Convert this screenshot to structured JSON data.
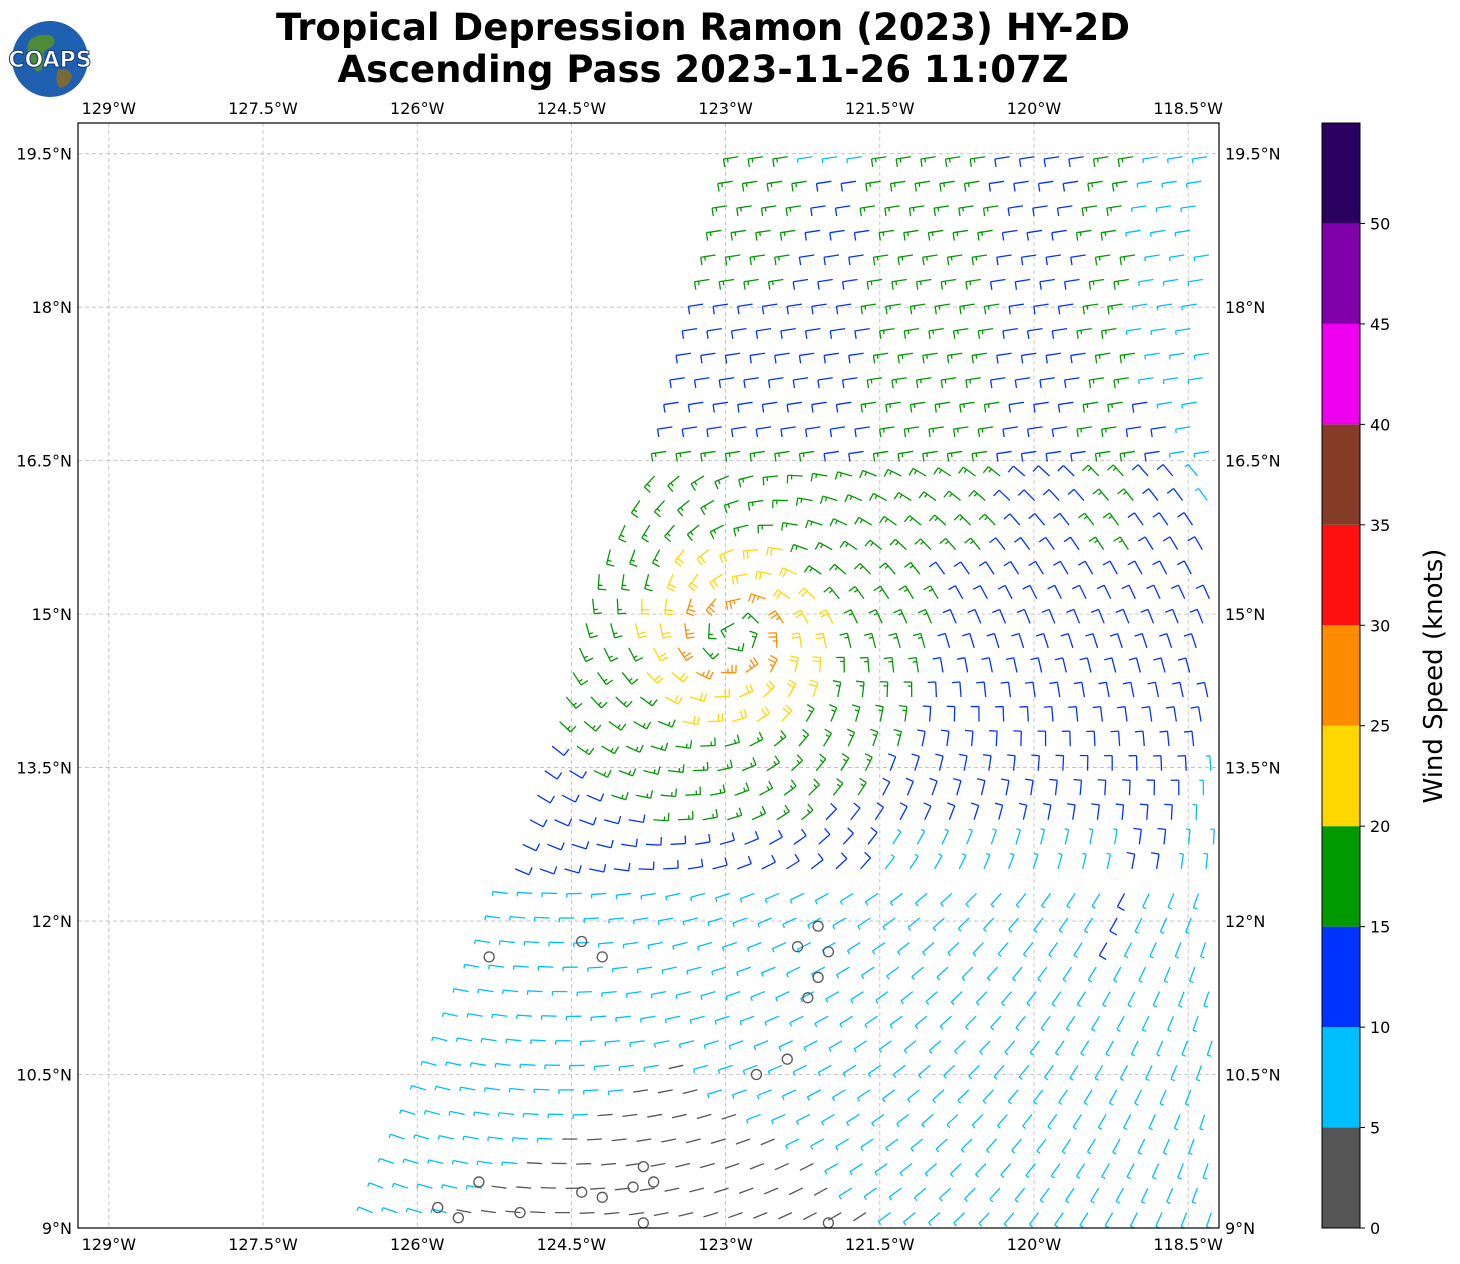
{
  "title": {
    "line1": "Tropical Depression Ramon (2023) HY-2D",
    "line2": "Ascending Pass 2023-11-26 11:07Z"
  },
  "logo": {
    "text": "COAPS",
    "icon": "globe-icon"
  },
  "map": {
    "lon_range": [
      -129.3,
      -118.2
    ],
    "lat_range": [
      9.0,
      19.8
    ],
    "grid": true,
    "lon_ticks": [
      -129,
      -127.5,
      -126,
      -124.5,
      -123,
      -121.5,
      -120,
      -118.5
    ],
    "lat_ticks": [
      9,
      10.5,
      12,
      13.5,
      15,
      16.5,
      18,
      19.5
    ],
    "lon_labels": [
      "129°W",
      "127.5°W",
      "126°W",
      "124.5°W",
      "123°W",
      "121.5°W",
      "120°W",
      "118.5°W"
    ],
    "lat_labels": [
      "9°N",
      "10.5°N",
      "12°N",
      "13.5°N",
      "15°N",
      "16.5°N",
      "18°N",
      "19.5°N"
    ]
  },
  "colorbar": {
    "title": "Wind Speed (knots)",
    "tick_labels": [
      "0",
      "5",
      "10",
      "15",
      "20",
      "25",
      "30",
      "35",
      "40",
      "45",
      "50"
    ],
    "bins": [
      {
        "min": 0,
        "max": 5,
        "color": "#555555"
      },
      {
        "min": 5,
        "max": 10,
        "color": "#00bfff"
      },
      {
        "min": 10,
        "max": 15,
        "color": "#0033ff"
      },
      {
        "min": 15,
        "max": 20,
        "color": "#009900"
      },
      {
        "min": 20,
        "max": 25,
        "color": "#ffd700"
      },
      {
        "min": 25,
        "max": 30,
        "color": "#ff8c00"
      },
      {
        "min": 30,
        "max": 35,
        "color": "#ff1010"
      },
      {
        "min": 35,
        "max": 40,
        "color": "#843c28"
      },
      {
        "min": 40,
        "max": 45,
        "color": "#ee00ee"
      },
      {
        "min": 45,
        "max": 50,
        "color": "#8000aa"
      },
      {
        "min": 50,
        "max": 55,
        "color": "#2a0060"
      }
    ]
  },
  "chart_data": {
    "type": "scatter",
    "description_type": "wind-barbs",
    "units": "knots",
    "storm_center": {
      "lon": -122.9,
      "lat": 14.8
    },
    "swath_west_edge": [
      [
        -126.5,
        9.0
      ],
      [
        -125.2,
        12.0
      ],
      [
        -124.6,
        14.0
      ],
      [
        -124.2,
        15.5
      ],
      [
        -123.6,
        16.5
      ],
      [
        -123.1,
        18.5
      ],
      [
        -122.8,
        19.8
      ]
    ],
    "calm_points": [
      {
        "lon": -125.3,
        "lat": 11.65
      },
      {
        "lon": -124.4,
        "lat": 11.8
      },
      {
        "lon": -124.2,
        "lat": 11.65
      },
      {
        "lon": -122.1,
        "lat": 11.95
      },
      {
        "lon": -122.3,
        "lat": 11.75
      },
      {
        "lon": -122.0,
        "lat": 11.7
      },
      {
        "lon": -122.1,
        "lat": 11.45
      },
      {
        "lon": -122.2,
        "lat": 11.25
      },
      {
        "lon": -122.7,
        "lat": 10.5
      },
      {
        "lon": -122.4,
        "lat": 10.65
      },
      {
        "lon": -125.4,
        "lat": 9.45
      },
      {
        "lon": -124.4,
        "lat": 9.35
      },
      {
        "lon": -124.2,
        "lat": 9.3
      },
      {
        "lon": -123.9,
        "lat": 9.4
      },
      {
        "lon": -123.7,
        "lat": 9.45
      },
      {
        "lon": -123.8,
        "lat": 9.6
      },
      {
        "lon": -125.8,
        "lat": 9.2
      },
      {
        "lon": -125.6,
        "lat": 9.1
      },
      {
        "lon": -125.0,
        "lat": 9.15
      },
      {
        "lon": -123.8,
        "lat": 9.05
      },
      {
        "lon": -122.0,
        "lat": 9.05
      }
    ]
  }
}
